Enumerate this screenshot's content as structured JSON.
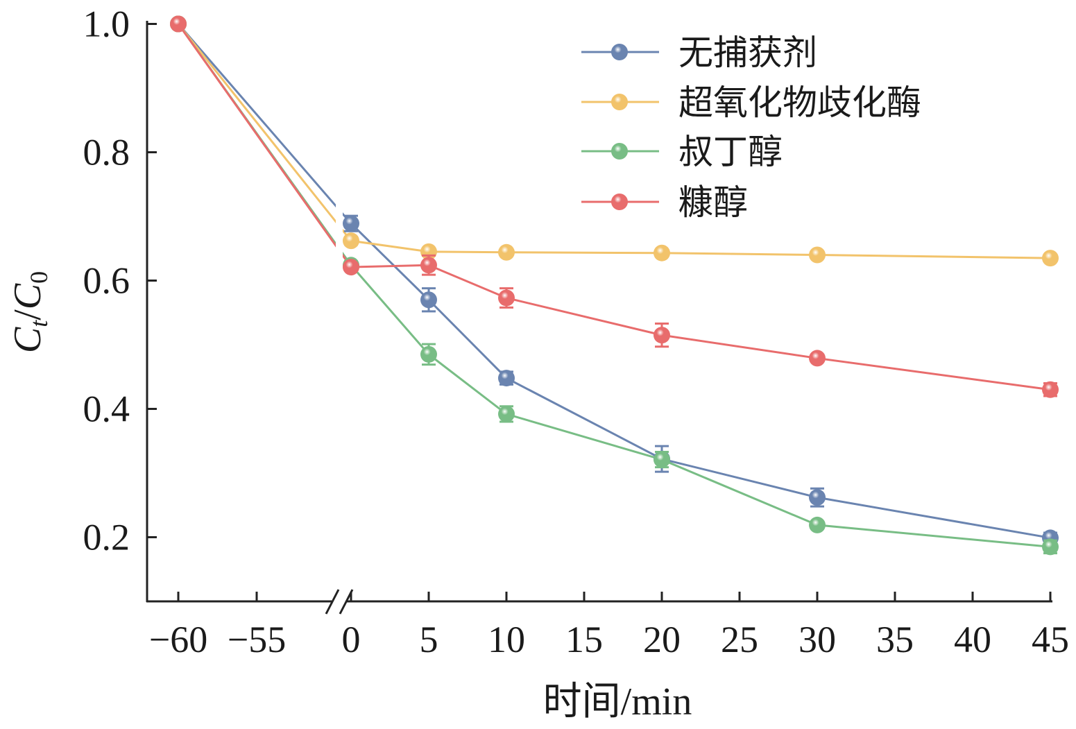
{
  "chart_data": {
    "type": "line",
    "title": "",
    "xlabel": "时间/min",
    "ylabel": {
      "main": "C",
      "sub_t": "t",
      "slash": "/",
      "main2": "C",
      "sub_0": "0"
    },
    "xlim_left_segment": [
      -60,
      -55
    ],
    "xlim_right_segment": [
      0,
      45
    ],
    "axis_break": true,
    "ylim": [
      0.1,
      1.0
    ],
    "x_ticks": [
      -60,
      -55,
      0,
      5,
      10,
      15,
      20,
      25,
      30,
      35,
      40,
      45
    ],
    "x_tick_labels": [
      "−60",
      "−55",
      "0",
      "5",
      "10",
      "15",
      "20",
      "25",
      "30",
      "35",
      "40",
      "45"
    ],
    "y_ticks": [
      0.2,
      0.4,
      0.6,
      0.8,
      1.0
    ],
    "y_tick_labels": [
      "0.2",
      "0.4",
      "0.6",
      "0.8",
      "1.0"
    ],
    "grid": false,
    "legend_position": "top-right",
    "x": [
      -60,
      0,
      5,
      10,
      20,
      30,
      45
    ],
    "series": [
      {
        "name": "无捕获剂",
        "color": "#6a84b0",
        "values": [
          1.0,
          0.689,
          0.57,
          0.448,
          0.322,
          0.262,
          0.199
        ],
        "errors": [
          0,
          0.012,
          0.018,
          0.01,
          0.02,
          0.014,
          0.008
        ]
      },
      {
        "name": "超氧化物歧化酶",
        "color": "#f2c36b",
        "values": [
          1.0,
          0.662,
          0.645,
          0.644,
          0.643,
          0.64,
          0.635
        ],
        "errors": [
          0,
          0.006,
          0.005,
          0.004,
          0.004,
          0.004,
          0.004
        ]
      },
      {
        "name": "叔丁醇",
        "color": "#78bd85",
        "values": [
          1.0,
          0.624,
          0.485,
          0.392,
          0.321,
          0.219,
          0.185
        ],
        "errors": [
          0,
          0.006,
          0.016,
          0.012,
          0.012,
          0.005,
          0.01
        ]
      },
      {
        "name": "糠醇",
        "color": "#e86c6c",
        "values": [
          1.0,
          0.621,
          0.624,
          0.573,
          0.515,
          0.479,
          0.43
        ],
        "errors": [
          0,
          0.004,
          0.015,
          0.015,
          0.018,
          0.005,
          0.01
        ]
      }
    ]
  }
}
